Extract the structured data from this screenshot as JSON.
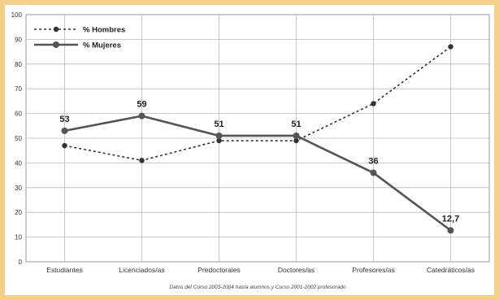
{
  "chart_data": {
    "type": "line",
    "categories": [
      "Estudiantes",
      "Licenciados/as",
      "Predoctorales",
      "Doctores/as",
      "Profesores/as",
      "Catedráticos/as"
    ],
    "series": [
      {
        "name": "% Hombres",
        "values": [
          47,
          41,
          49,
          49,
          64,
          87
        ],
        "style": "dashed",
        "color": "#333333"
      },
      {
        "name": "% Mujeres",
        "values": [
          53,
          59,
          51,
          51,
          36,
          12.7
        ],
        "style": "solid",
        "color": "#555555"
      }
    ],
    "data_labels": [
      "53",
      "59",
      "51",
      "51",
      "36",
      "12,7"
    ],
    "yticks": [
      0,
      10,
      20,
      30,
      40,
      50,
      60,
      70,
      80,
      90,
      100
    ],
    "ylim": [
      0,
      100
    ],
    "grid": true,
    "legend_position": "top-left",
    "footnote": "Datos del Curso 2003-2004 hasta alumnos y Curso 2001-2002 profesorado"
  }
}
